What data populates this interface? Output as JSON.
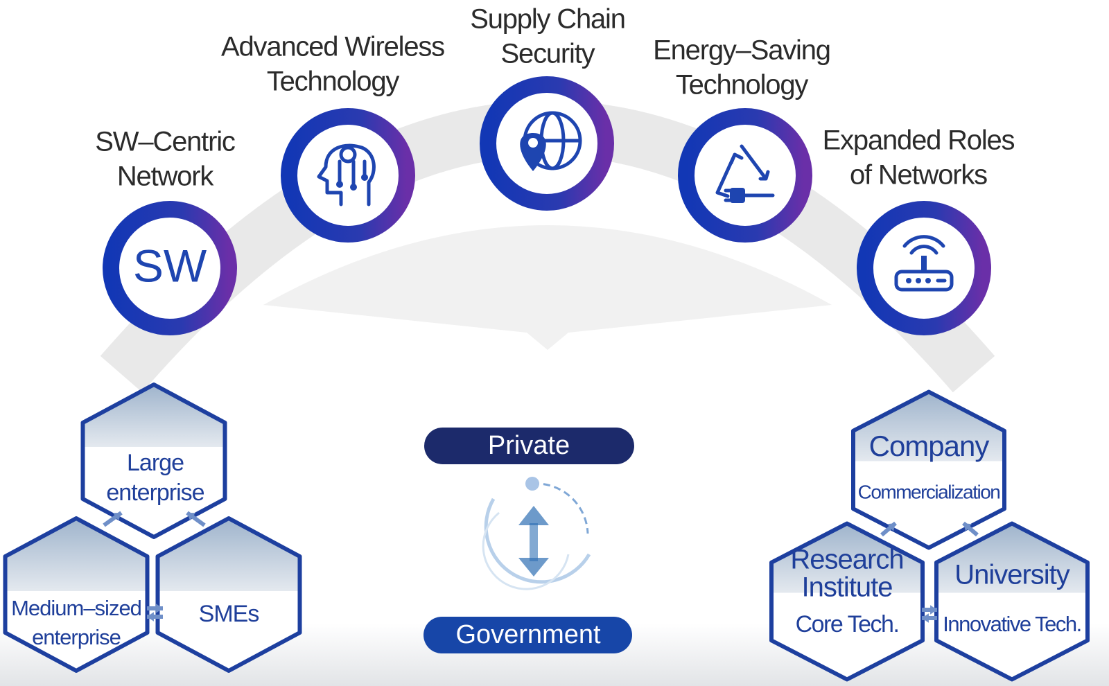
{
  "technologies": [
    {
      "label": [
        "SW–Centric",
        "Network"
      ],
      "icon_text": "SW"
    },
    {
      "label": [
        "Advanced Wireless",
        "Technology"
      ]
    },
    {
      "label": [
        "Supply Chain",
        "Security"
      ]
    },
    {
      "label": [
        "Energy–Saving",
        "Technology"
      ]
    },
    {
      "label": [
        "Expanded Roles",
        "of Networks"
      ]
    }
  ],
  "center": {
    "top": "Private",
    "bottom": "Government"
  },
  "left_group": [
    {
      "title": [
        "Large",
        "enterprise"
      ]
    },
    {
      "title": [
        "Medium–sized",
        "enterprise"
      ]
    },
    {
      "title": [
        "SMEs"
      ]
    }
  ],
  "right_group": [
    {
      "title": [
        "Company"
      ],
      "subtitle": "Commercialization"
    },
    {
      "title": [
        "Research",
        "Institute"
      ],
      "subtitle": "Core Tech."
    },
    {
      "title": [
        "University"
      ],
      "subtitle": "Innovative Tech."
    }
  ]
}
